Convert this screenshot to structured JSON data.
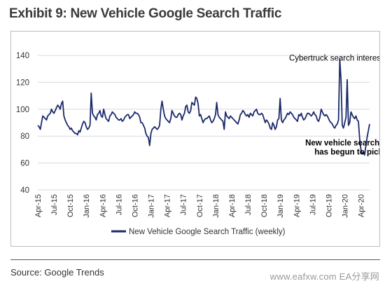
{
  "page": {
    "title": "Exhibit 9: New Vehicle Google Search Traffic",
    "source": "Source: Google Trends",
    "watermark": "www.eafxw.com   EA分享网"
  },
  "colors": {
    "series": "#1b2a6b",
    "grid": "#d9d9d9",
    "text": "#333333"
  },
  "chart_data": {
    "type": "line",
    "title": "",
    "xlabel": "",
    "ylabel": "",
    "ylim": [
      40,
      145
    ],
    "yticks": [
      40,
      60,
      80,
      100,
      120,
      140
    ],
    "grid": true,
    "legend": {
      "position": "bottom",
      "entries": [
        "New Vehicle Google Search Traffic (weekly)"
      ]
    },
    "x_tick_labels": [
      "Apr-15",
      "Jul-15",
      "Oct-15",
      "Jan-16",
      "Apr-16",
      "Jul-16",
      "Oct-16",
      "Jan-17",
      "Apr-17",
      "Jul-17",
      "Oct-17",
      "Jan-18",
      "Apr-18",
      "Jul-18",
      "Oct-18",
      "Jan-19",
      "Apr-19",
      "Jul-19",
      "Oct-19",
      "Jan-20",
      "Apr-20"
    ],
    "annotations": [
      {
        "text": "Cybertruck search interest",
        "x_week": 240,
        "y": 136
      },
      {
        "text_lines": [
          "New vehicle search traffic",
          "has begun to pick up"
        ],
        "x_week": 255,
        "y": 73
      }
    ],
    "series": [
      {
        "name": "New Vehicle Google Search Traffic (weekly)",
        "frequency": "weekly",
        "start": "Apr-15",
        "values": [
          88,
          87,
          85,
          90,
          95,
          94,
          93,
          92,
          95,
          96,
          97,
          100,
          98,
          97,
          99,
          101,
          103,
          102,
          100,
          104,
          106,
          95,
          92,
          90,
          88,
          87,
          85,
          86,
          84,
          83,
          82,
          82,
          81,
          84,
          83,
          86,
          89,
          91,
          90,
          87,
          85,
          86,
          88,
          112,
          97,
          95,
          94,
          92,
          96,
          97,
          99,
          95,
          94,
          100,
          96,
          93,
          92,
          91,
          95,
          96,
          98,
          97,
          96,
          94,
          93,
          92,
          92,
          93,
          91,
          92,
          94,
          95,
          96,
          96,
          93,
          94,
          95,
          96,
          98,
          97,
          97,
          96,
          94,
          90,
          90,
          88,
          86,
          82,
          80,
          79,
          73,
          82,
          85,
          86,
          87,
          86,
          85,
          86,
          88,
          100,
          106,
          100,
          95,
          93,
          92,
          91,
          90,
          93,
          99,
          97,
          95,
          94,
          94,
          96,
          97,
          96,
          92,
          95,
          97,
          102,
          103,
          98,
          97,
          99,
          105,
          104,
          103,
          109,
          108,
          104,
          95,
          96,
          93,
          90,
          92,
          93,
          93,
          94,
          95,
          92,
          90,
          91,
          93,
          96,
          105,
          96,
          94,
          93,
          92,
          91,
          85,
          98,
          95,
          94,
          93,
          95,
          94,
          93,
          92,
          91,
          90,
          89,
          92,
          96,
          97,
          99,
          98,
          96,
          95,
          96,
          94,
          97,
          96,
          95,
          98,
          99,
          100,
          97,
          96,
          96,
          97,
          96,
          93,
          90,
          92,
          91,
          89,
          86,
          85,
          90,
          88,
          85,
          87,
          92,
          93,
          108,
          92,
          90,
          92,
          93,
          95,
          97,
          96,
          98,
          97,
          96,
          94,
          93,
          92,
          91,
          96,
          95,
          97,
          94,
          92,
          93,
          95,
          97,
          97,
          96,
          95,
          96,
          98,
          96,
          95,
          92,
          91,
          94,
          100,
          98,
          96,
          95,
          96,
          95,
          93,
          91,
          90,
          89,
          87,
          86,
          88,
          89,
          92,
          137,
          122,
          88,
          86,
          90,
          94,
          122,
          88,
          90,
          98,
          96,
          94,
          93,
          95,
          92,
          91,
          78,
          70,
          67,
          68,
          66,
          73,
          79,
          84,
          89
        ]
      }
    ]
  }
}
